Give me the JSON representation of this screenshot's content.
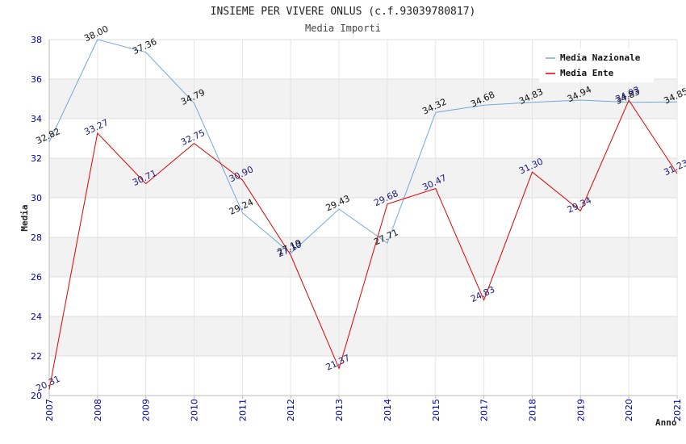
{
  "chart_data": {
    "type": "line",
    "title": "INSIEME PER VIVERE ONLUS (c.f.93039780817)",
    "subtitle": "Media Importi",
    "ylabel": "Media",
    "xlabel": "Anno",
    "ylim": [
      20,
      38
    ],
    "yticks": [
      "20",
      "22",
      "24",
      "26",
      "28",
      "30",
      "32",
      "34",
      "36",
      "38"
    ],
    "categories": [
      "2007",
      "2008",
      "2009",
      "2010",
      "2011",
      "2012",
      "2013",
      "2014",
      "2015",
      "2017",
      "2018",
      "2019",
      "2020",
      "2021"
    ],
    "legend_position": "top-right",
    "series": [
      {
        "name": "Media Nazionale",
        "color": "#6fa8dc",
        "label_color": "#111111",
        "values": [
          32.82,
          38.0,
          37.36,
          34.79,
          29.24,
          27.19,
          29.43,
          27.71,
          34.32,
          34.68,
          34.83,
          34.94,
          34.83,
          34.85
        ],
        "labels": [
          "32.82",
          "38.00",
          "37.36",
          "34.79",
          "29.24",
          "27.19",
          "29.43",
          "27.71",
          "34.32",
          "34.68",
          "34.83",
          "34.94",
          "34.83",
          "34.85"
        ]
      },
      {
        "name": "Media Ente",
        "color": "#dd0000",
        "label_color": "#1a1a7a",
        "values": [
          20.31,
          33.27,
          30.71,
          32.75,
          30.9,
          27.1,
          21.37,
          29.68,
          30.47,
          24.83,
          31.3,
          29.34,
          34.93,
          31.23
        ],
        "labels": [
          "20.31",
          "33.27",
          "30.71",
          "32.75",
          "30.90",
          "27.10",
          "21.37",
          "29.68",
          "30.47",
          "24.83",
          "31.30",
          "29.34",
          "34.93",
          "31.23"
        ]
      }
    ]
  }
}
